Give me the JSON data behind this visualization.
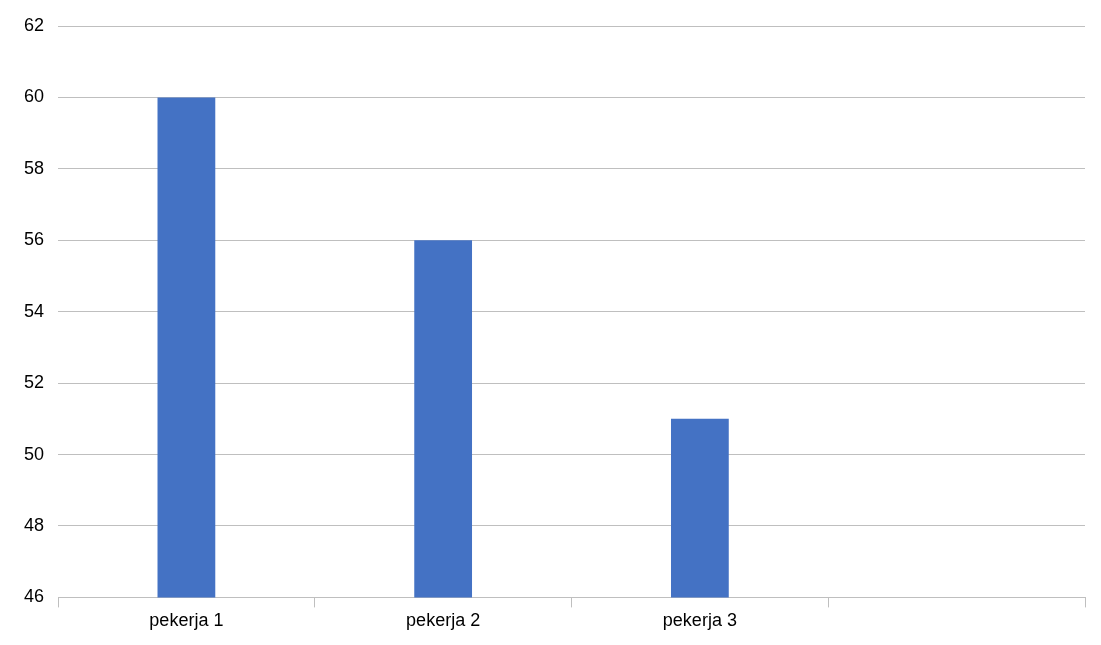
{
  "chart_data": {
    "type": "bar",
    "categories": [
      "pekerja 1",
      "pekerja 2",
      "pekerja 3",
      null
    ],
    "values": [
      60,
      56,
      51,
      null
    ],
    "color": "#4472c4",
    "ylim": [
      46,
      62
    ],
    "yticks": [
      46,
      48,
      50,
      52,
      54,
      56,
      58,
      60,
      62
    ],
    "grid": "y",
    "legend": false
  }
}
